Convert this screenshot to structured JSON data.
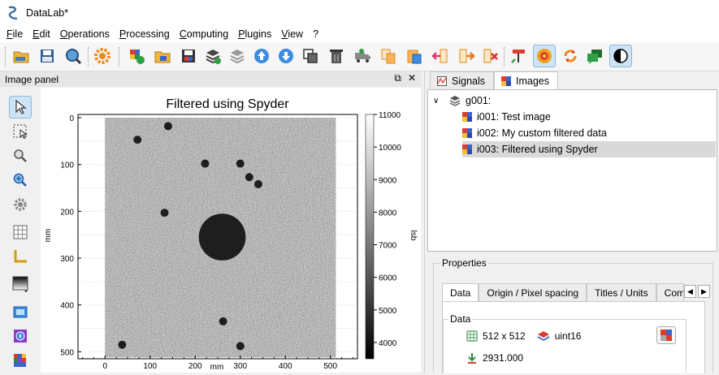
{
  "window": {
    "title": "DataLab*"
  },
  "menu": [
    "File",
    "Edit",
    "Operations",
    "Processing",
    "Computing",
    "Plugins",
    "View",
    "?"
  ],
  "toolbar": {
    "icons": [
      "open-h5-icon",
      "save-h5-icon",
      "browse-h5-icon",
      "settings-icon",
      "new-image-icon",
      "open-image-icon",
      "save-image-icon",
      "layers-icon",
      "layers-gray-icon",
      "move-up-icon",
      "move-down-icon",
      "duplicate-icon",
      "delete-icon",
      "truck-icon",
      "copy-metadata-icon",
      "paste-metadata-icon",
      "import-metadata-icon",
      "export-metadata-icon",
      "delete-metadata-icon",
      "annotations-icon",
      "spyder-icon",
      "refresh-icon",
      "comment-icon",
      "contrast-icon"
    ]
  },
  "image_panel": {
    "title": "Image panel",
    "undock": "⧉",
    "close": "✕",
    "plot": {
      "title": "Filtered using Spyder",
      "xlabel": "mm",
      "ylabel": "mm",
      "colorbar_label": "lsb",
      "x_ticks": [
        "0",
        "100",
        "200",
        "300",
        "400",
        "500"
      ],
      "y_ticks": [
        "0",
        "100",
        "200",
        "300",
        "400",
        "500"
      ],
      "colorbar_ticks": [
        "11000",
        "10000",
        "9000",
        "8000",
        "7000",
        "6000",
        "5000",
        "4000"
      ],
      "colorbar_range": [
        3500,
        11000
      ],
      "image_extent": [
        0,
        512
      ],
      "spots": [
        {
          "x": 140,
          "y": 18,
          "r": 9
        },
        {
          "x": 72,
          "y": 47,
          "r": 9
        },
        {
          "x": 222,
          "y": 98,
          "r": 9
        },
        {
          "x": 300,
          "y": 98,
          "r": 9
        },
        {
          "x": 320,
          "y": 127,
          "r": 9
        },
        {
          "x": 340,
          "y": 142,
          "r": 9
        },
        {
          "x": 132,
          "y": 203,
          "r": 9
        },
        {
          "x": 260,
          "y": 255,
          "r": 52
        },
        {
          "x": 262,
          "y": 435,
          "r": 9
        },
        {
          "x": 38,
          "y": 485,
          "r": 9
        },
        {
          "x": 300,
          "y": 488,
          "r": 9
        }
      ]
    }
  },
  "right_panel": {
    "tabs": [
      {
        "label": "Signals",
        "icon": "signals-icon"
      },
      {
        "label": "Images",
        "icon": "images-icon"
      }
    ],
    "tree": {
      "group": "g001:",
      "items": [
        "i001: Test image",
        "i002: My custom filtered data",
        "i003: Filtered using Spyder"
      ]
    },
    "properties": {
      "title": "Properties",
      "tabs": [
        "Data",
        "Origin / Pixel spacing",
        "Titles / Units",
        "Comp"
      ],
      "data_group_title": "Data",
      "size": "512 x 512",
      "dtype": "uint16",
      "value": "2931.000"
    }
  }
}
